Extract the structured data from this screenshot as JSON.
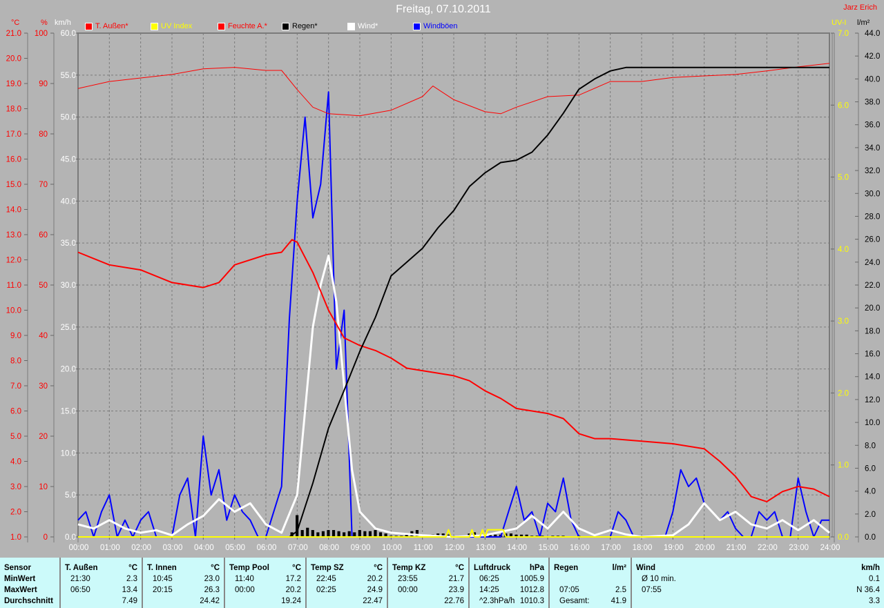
{
  "header": {
    "title": "Freitag, 07.10.2011",
    "owner": "Jarz Erich"
  },
  "legend": [
    {
      "label": "T. Außen*",
      "color": "#ff0000"
    },
    {
      "label": "UV Index",
      "color": "#ffff00"
    },
    {
      "label": "Feuchte A.*",
      "color": "#ff0000"
    },
    {
      "label": "Regen*",
      "color": "#000000"
    },
    {
      "label": "Wind*",
      "color": "#ffffff"
    },
    {
      "label": "Windböen",
      "color": "#0000ff"
    }
  ],
  "axes_units": {
    "temp": "°C",
    "hum": "%",
    "wind": "km/h",
    "uv": "UV-I",
    "rain": "l/m²"
  },
  "chart_data": {
    "type": "line",
    "title": "Freitag, 07.10.2011",
    "grid": true,
    "legend_placement": "top",
    "x_ticks": [
      "00:00",
      "01:00",
      "02:00",
      "03:00",
      "04:00",
      "05:00",
      "06:00",
      "07:00",
      "08:00",
      "09:00",
      "10:00",
      "11:00",
      "12:00",
      "13:00",
      "14:00",
      "15:00",
      "16:00",
      "17:00",
      "18:00",
      "19:00",
      "20:00",
      "21:00",
      "22:00",
      "23:00",
      "24:00"
    ],
    "axes": {
      "temp": {
        "unit": "°C",
        "range": [
          1.0,
          21.0
        ],
        "step": 1.0,
        "decimals": 1,
        "color": "#ff0000"
      },
      "hum": {
        "unit": "%",
        "range": [
          0,
          100
        ],
        "step": 10,
        "decimals": 0,
        "color": "#ff0000"
      },
      "wind": {
        "unit": "km/h",
        "range": [
          0,
          60
        ],
        "step": 5,
        "decimals": 1,
        "color": "#ffffff"
      },
      "uv": {
        "unit": "UV-I",
        "range": [
          0,
          7
        ],
        "step": 1,
        "decimals": 1,
        "color": "#ffff00"
      },
      "rain": {
        "unit": "l/m²",
        "range": [
          0,
          44
        ],
        "step": 2,
        "decimals": 1,
        "color": "#000000"
      }
    },
    "series": [
      {
        "name": "Windböen",
        "axis": "wind",
        "color": "#0000ff",
        "width": 2,
        "x": [
          "00:00",
          "00:15",
          "00:30",
          "00:45",
          "01:00",
          "01:15",
          "01:30",
          "01:45",
          "02:00",
          "02:15",
          "02:30",
          "02:45",
          "03:00",
          "03:15",
          "03:30",
          "03:45",
          "04:00",
          "04:15",
          "04:30",
          "04:45",
          "05:00",
          "05:15",
          "05:30",
          "05:45",
          "06:00",
          "06:30",
          "06:45",
          "07:00",
          "07:15",
          "07:30",
          "07:45",
          "08:00",
          "08:15",
          "08:30",
          "08:45",
          "09:00",
          "13:30",
          "13:45",
          "14:00",
          "14:15",
          "14:30",
          "14:45",
          "15:00",
          "15:15",
          "15:30",
          "15:45",
          "16:00",
          "17:00",
          "17:15",
          "17:30",
          "17:45",
          "18:45",
          "19:00",
          "19:15",
          "19:30",
          "19:45",
          "20:00",
          "20:15",
          "20:30",
          "20:45",
          "21:00",
          "21:15",
          "21:30",
          "21:45",
          "22:00",
          "22:15",
          "22:30",
          "22:45",
          "23:00",
          "23:15",
          "23:30",
          "23:45",
          "24:00"
        ],
        "y": [
          2,
          3,
          0,
          3,
          5,
          0,
          2,
          0,
          2,
          3,
          0,
          0,
          0,
          5,
          7,
          0,
          12,
          5,
          8,
          2,
          5,
          3,
          2,
          0,
          0,
          6,
          26,
          40,
          50,
          38,
          42,
          53,
          20,
          27,
          0,
          0,
          0,
          3,
          6,
          2,
          3,
          0,
          4,
          3,
          7,
          2,
          0,
          0,
          3,
          2,
          0,
          0,
          3,
          8,
          6,
          7,
          4,
          3,
          2,
          3,
          1,
          0,
          0,
          3,
          2,
          3,
          0,
          0,
          7,
          3,
          0,
          2,
          2
        ]
      },
      {
        "name": "Wind*",
        "axis": "wind",
        "color": "#ffffff",
        "width": 3,
        "x": [
          "00:00",
          "00:30",
          "01:00",
          "01:30",
          "02:00",
          "02:30",
          "03:00",
          "03:30",
          "04:00",
          "04:30",
          "05:00",
          "05:30",
          "06:00",
          "06:30",
          "07:00",
          "07:15",
          "07:30",
          "07:45",
          "08:00",
          "08:15",
          "08:30",
          "08:45",
          "09:00",
          "09:30",
          "10:00",
          "11:00",
          "12:00",
          "13:00",
          "14:00",
          "14:30",
          "15:00",
          "15:30",
          "16:00",
          "16:30",
          "17:00",
          "17:30",
          "18:00",
          "19:00",
          "19:30",
          "20:00",
          "20:30",
          "21:00",
          "21:30",
          "22:00",
          "22:30",
          "23:00",
          "23:30",
          "24:00"
        ],
        "y": [
          1.5,
          1,
          2,
          1,
          0.5,
          0.8,
          0.2,
          1.5,
          2.5,
          4.5,
          3,
          4,
          1.5,
          0.5,
          5,
          15,
          25,
          30,
          33.5,
          28,
          18,
          8,
          3,
          1,
          0.5,
          0.2,
          0,
          0.2,
          1,
          2.5,
          1,
          3,
          1,
          0.2,
          0.8,
          0.3,
          0,
          0.2,
          1.5,
          4,
          2,
          3,
          1.5,
          1,
          2,
          0.8,
          2,
          0.5
        ]
      },
      {
        "name": "Feuchte A.*",
        "axis": "hum",
        "color": "#ff0000",
        "width": 1,
        "x": [
          "00:00",
          "01:00",
          "02:00",
          "03:00",
          "04:00",
          "05:00",
          "06:00",
          "06:30",
          "07:00",
          "07:30",
          "08:00",
          "09:00",
          "10:00",
          "11:00",
          "11:20",
          "12:00",
          "13:00",
          "13:30",
          "14:00",
          "15:00",
          "16:00",
          "17:00",
          "18:00",
          "19:00",
          "20:00",
          "21:00",
          "22:00",
          "23:00",
          "24:00"
        ],
        "y": [
          89.0,
          90.4,
          91.1,
          91.8,
          92.9,
          93.2,
          92.6,
          92.6,
          88.8,
          85.3,
          84.0,
          83.6,
          84.7,
          87.4,
          89.5,
          86.8,
          84.4,
          84.0,
          85.3,
          87.4,
          87.7,
          90.4,
          90.4,
          91.2,
          91.5,
          91.8,
          92.5,
          93.3,
          94.0
        ]
      },
      {
        "name": "T. Außen*",
        "axis": "temp",
        "color": "#ff0000",
        "width": 2,
        "x": [
          "00:00",
          "01:00",
          "02:00",
          "03:00",
          "04:00",
          "04:30",
          "05:00",
          "06:00",
          "06:30",
          "06:50",
          "07:00",
          "07:30",
          "08:00",
          "08:30",
          "09:00",
          "09:30",
          "10:00",
          "10:30",
          "11:00",
          "12:00",
          "12:30",
          "13:00",
          "13:30",
          "14:00",
          "14:30",
          "15:00",
          "15:30",
          "16:00",
          "16:30",
          "17:00",
          "18:00",
          "19:00",
          "20:00",
          "20:30",
          "21:00",
          "21:30",
          "22:00",
          "22:30",
          "23:00",
          "23:30",
          "24:00"
        ],
        "y": [
          12.3,
          11.8,
          11.6,
          11.1,
          10.9,
          11.1,
          11.8,
          12.2,
          12.3,
          12.8,
          12.7,
          11.5,
          10.0,
          8.9,
          8.6,
          8.4,
          8.1,
          7.7,
          7.6,
          7.4,
          7.2,
          6.8,
          6.5,
          6.1,
          6.0,
          5.9,
          5.7,
          5.1,
          4.9,
          4.9,
          4.8,
          4.7,
          4.5,
          4.0,
          3.4,
          2.6,
          2.4,
          2.8,
          3.0,
          2.9,
          2.6
        ]
      },
      {
        "name": "Regen*",
        "axis": "rain",
        "color": "#000000",
        "width": 2,
        "x": [
          "00:00",
          "06:45",
          "07:00",
          "07:30",
          "08:00",
          "08:30",
          "09:00",
          "09:30",
          "10:00",
          "10:15",
          "11:00",
          "11:30",
          "12:00",
          "12:30",
          "13:00",
          "13:30",
          "14:00",
          "14:30",
          "15:00",
          "15:30",
          "16:00",
          "16:30",
          "17:00",
          "17:30",
          "18:00",
          "24:00"
        ],
        "y": [
          0,
          0,
          0.5,
          4.7,
          9.5,
          12.8,
          16.2,
          19.2,
          22.8,
          23.4,
          25.2,
          27.0,
          28.5,
          30.6,
          31.8,
          32.7,
          32.9,
          33.6,
          35.1,
          37.0,
          39.1,
          40.0,
          40.7,
          41.0,
          41.0,
          41.0
        ]
      },
      {
        "name": "UV Index",
        "axis": "uv",
        "color": "#ffff00",
        "width": 2,
        "x": [
          "00:00",
          "11:45",
          "11:50",
          "11:55",
          "12:30",
          "12:35",
          "12:40",
          "12:50",
          "12:55",
          "13:00",
          "13:05",
          "13:10",
          "13:35",
          "13:40",
          "24:00"
        ],
        "y": [
          0,
          0,
          0.1,
          0,
          0,
          0.1,
          0,
          0,
          0.1,
          0,
          0.1,
          0.1,
          0.1,
          0,
          0
        ]
      }
    ],
    "rain_bars": {
      "axis": "rain",
      "start": "06:50",
      "interval_min": 10,
      "values": [
        0.4,
        1.9,
        0.6,
        0.8,
        0.6,
        0.4,
        0.5,
        0.6,
        0.6,
        0.5,
        0.4,
        0.5,
        0.4,
        0.6,
        0.5,
        0.5,
        0.6,
        0.4,
        0.3,
        0.1,
        0.1,
        0.1,
        0.2,
        0.5,
        0.6,
        0.2,
        0.0,
        0.2,
        0.3,
        0.3,
        0.2,
        0.1,
        0.1,
        0.1,
        0.3,
        0.4,
        0.2,
        0.2,
        0.3,
        0.2,
        0.2,
        0.3,
        0.3,
        0.2,
        0.2,
        0.2,
        0.1,
        0.1,
        0.1,
        0.0,
        0.1,
        0.1,
        0.1,
        0.0,
        0.0,
        0.1
      ]
    }
  },
  "table": [
    {
      "header": "Sensor",
      "unit": "",
      "rows": [
        {
          "l": "MinWert",
          "r": ""
        },
        {
          "l": "MaxWert",
          "r": ""
        },
        {
          "l": "Durchschnitt",
          "r": ""
        }
      ],
      "bold_labels": true
    },
    {
      "header": "T. Außen",
      "unit": "°C",
      "rows": [
        {
          "l": "21:30",
          "r": "2.3"
        },
        {
          "l": "06:50",
          "r": "13.4"
        },
        {
          "l": "",
          "r": "7.49"
        }
      ]
    },
    {
      "header": "T. Innen",
      "unit": "°C",
      "rows": [
        {
          "l": "10:45",
          "r": "23.0"
        },
        {
          "l": "20:15",
          "r": "26.3"
        },
        {
          "l": "",
          "r": "24.42"
        }
      ]
    },
    {
      "header": "Temp Pool",
      "unit": "°C",
      "rows": [
        {
          "l": "11:40",
          "r": "17.2"
        },
        {
          "l": "00:00",
          "r": "20.2"
        },
        {
          "l": "",
          "r": "19.24"
        }
      ]
    },
    {
      "header": "Temp SZ",
      "unit": "°C",
      "rows": [
        {
          "l": "22:45",
          "r": "20.2"
        },
        {
          "l": "02:25",
          "r": "24.9"
        },
        {
          "l": "",
          "r": "22.47"
        }
      ]
    },
    {
      "header": "Temp KZ",
      "unit": "°C",
      "rows": [
        {
          "l": "23:55",
          "r": "21.7"
        },
        {
          "l": "00:00",
          "r": "23.9"
        },
        {
          "l": "",
          "r": "22.76"
        }
      ]
    },
    {
      "header": "Luftdruck",
      "unit": "hPa",
      "rows": [
        {
          "l": "06:25",
          "r": "1005.9"
        },
        {
          "l": "14:25",
          "r": "1012.8"
        },
        {
          "l": "^2.3hPa/h",
          "r": "1010.3"
        }
      ]
    },
    {
      "header": "Regen",
      "unit": "l/m²",
      "rows": [
        {
          "l": "",
          "r": ""
        },
        {
          "l": "07:05",
          "r": "2.5"
        },
        {
          "l": "Gesamt:",
          "r": "41.9"
        }
      ]
    },
    {
      "header": "Wind",
      "unit": "km/h",
      "rows": [
        {
          "l": "Ø 10 min.",
          "r": "0.1"
        },
        {
          "l": "07:55",
          "r": "N 36.4"
        },
        {
          "l": "",
          "r": "3.3"
        }
      ]
    }
  ]
}
